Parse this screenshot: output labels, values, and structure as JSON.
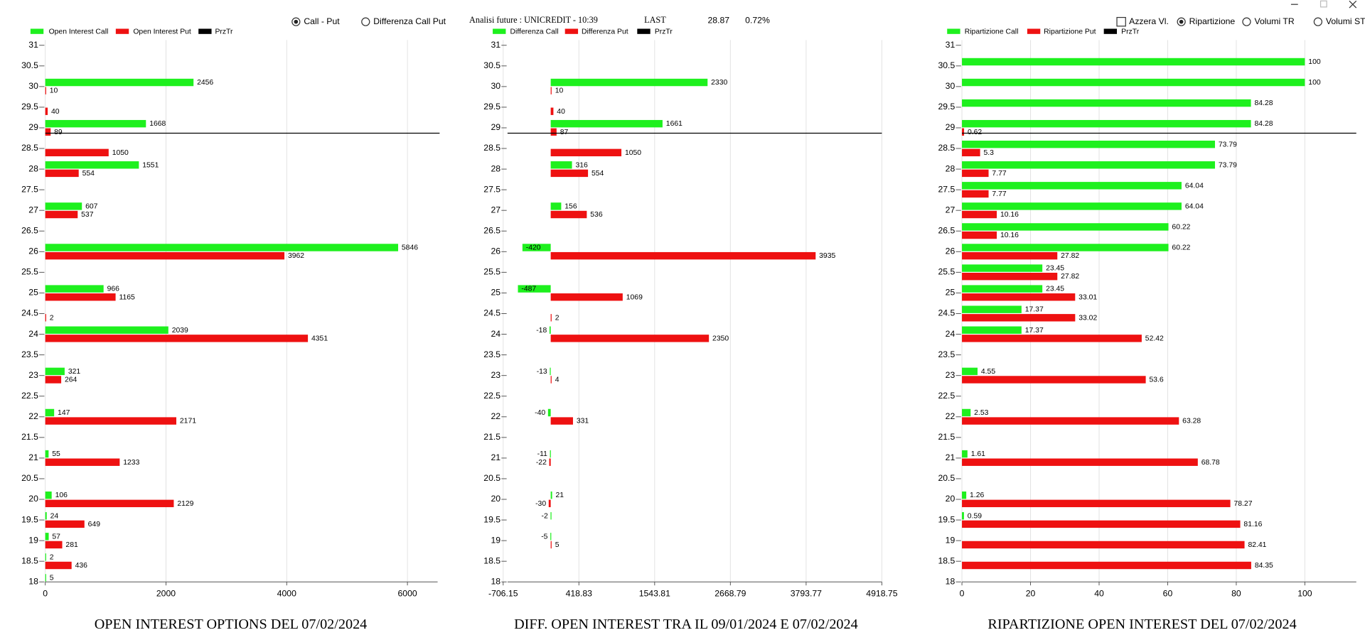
{
  "header": {
    "modes": [
      {
        "label": "Call - Put",
        "checked": true
      },
      {
        "label": "Differenza Call Put",
        "checked": false
      }
    ],
    "analysis": "Analisi future : UNICREDIT - 10:39",
    "last_label": "LAST",
    "last_price": 28.87,
    "change": "0.72%",
    "options": [
      {
        "label": "Azzera Vl.",
        "kind": "checkbox",
        "checked": false
      },
      {
        "label": "Ripartizione",
        "kind": "radio",
        "checked": true
      },
      {
        "label": "Volumi TR",
        "kind": "radio",
        "checked": false
      },
      {
        "label": "Volumi ST",
        "kind": "radio",
        "checked": false
      }
    ]
  },
  "chart_data": [
    {
      "type": "bar",
      "orientation": "horizontal",
      "title": "OPEN INTEREST OPTIONS DEL 07/02/2024",
      "categories": [
        31,
        30.5,
        30,
        29.5,
        29,
        28.5,
        28,
        27.5,
        27,
        26.5,
        26,
        25.5,
        25,
        24.5,
        24,
        23.5,
        23,
        22.5,
        22,
        21.5,
        21,
        20.5,
        20,
        19.5,
        19,
        18.5,
        18
      ],
      "ylim": [
        18,
        31
      ],
      "xlim": [
        0,
        6500
      ],
      "xticks": [
        0,
        2000,
        4000,
        6000
      ],
      "grid": true,
      "price_line": {
        "name": "PrzTr",
        "color": "#000000"
      },
      "series": [
        {
          "name": "Open Interest Call",
          "color": "#1ef01e",
          "values": [
            null,
            null,
            2456,
            null,
            1668,
            null,
            1551,
            null,
            607,
            null,
            5846,
            null,
            966,
            null,
            2039,
            null,
            321,
            null,
            147,
            null,
            55,
            null,
            106,
            24,
            57,
            2,
            5
          ]
        },
        {
          "name": "Open Interest Put",
          "color": "#ee1111",
          "values": [
            null,
            null,
            10,
            40,
            89,
            1050,
            554,
            null,
            537,
            null,
            3962,
            null,
            1165,
            2,
            4351,
            null,
            264,
            null,
            2171,
            null,
            1233,
            null,
            2129,
            649,
            281,
            436,
            null
          ]
        }
      ]
    },
    {
      "type": "bar",
      "orientation": "horizontal",
      "title": "DIFF. OPEN INTEREST TRA IL 09/01/2024 E 07/02/2024",
      "categories": [
        31,
        30.5,
        30,
        29.5,
        29,
        28.5,
        28,
        27.5,
        27,
        26.5,
        26,
        25.5,
        25,
        24.5,
        24,
        23.5,
        23,
        22.5,
        22,
        21.5,
        21,
        20.5,
        20,
        19.5,
        19,
        18.5,
        18
      ],
      "ylim": [
        18,
        31
      ],
      "xlim": [
        -706.15,
        4918.75
      ],
      "xticks": [
        -706.15,
        418.83,
        1543.81,
        2668.79,
        3793.77,
        4918.75
      ],
      "grid": true,
      "price_line": {
        "name": "PrzTr",
        "color": "#000000"
      },
      "series": [
        {
          "name": "Differenza Call",
          "color": "#1ef01e",
          "values": [
            null,
            null,
            2330,
            null,
            1661,
            null,
            316,
            null,
            156,
            null,
            -420,
            null,
            -487,
            null,
            -18,
            null,
            -13,
            null,
            -40,
            null,
            -11,
            null,
            21,
            -2,
            -5,
            null,
            null
          ]
        },
        {
          "name": "Differenza Put",
          "color": "#ee1111",
          "values": [
            null,
            null,
            10,
            40,
            87,
            1050,
            554,
            null,
            536,
            null,
            3935,
            null,
            1069,
            2,
            2350,
            null,
            4,
            null,
            331,
            null,
            -22,
            null,
            -30,
            null,
            5,
            null,
            null
          ]
        }
      ]
    },
    {
      "type": "bar",
      "orientation": "horizontal",
      "title": "RIPARTIZIONE OPEN INTEREST DEL 07/02/2024",
      "categories": [
        31,
        30.5,
        30,
        29.5,
        29,
        28.5,
        28,
        27.5,
        27,
        26.5,
        26,
        25.5,
        25,
        24.5,
        24,
        23.5,
        23,
        22.5,
        22,
        21.5,
        21,
        20.5,
        20,
        19.5,
        19,
        18.5,
        18
      ],
      "ylim": [
        18,
        31
      ],
      "xlim": [
        0,
        115
      ],
      "xticks": [
        0,
        20,
        40,
        60,
        80,
        100
      ],
      "grid": true,
      "price_line": {
        "name": "PrzTr",
        "color": "#000000"
      },
      "series": [
        {
          "name": "Ripartizione Call",
          "color": "#1ef01e",
          "values": [
            null,
            100,
            100,
            84.28,
            84.28,
            73.79,
            73.79,
            64.04,
            64.04,
            60.22,
            60.22,
            23.45,
            23.45,
            17.37,
            17.37,
            null,
            4.55,
            null,
            2.53,
            null,
            1.61,
            null,
            1.26,
            0.59,
            null,
            null,
            null
          ]
        },
        {
          "name": "Ripartizione Put",
          "color": "#ee1111",
          "values": [
            null,
            null,
            null,
            null,
            0.62,
            5.3,
            7.77,
            7.77,
            10.16,
            10.16,
            27.82,
            27.82,
            33.01,
            33.02,
            52.42,
            null,
            53.6,
            null,
            63.28,
            null,
            68.78,
            null,
            78.27,
            81.16,
            82.41,
            84.35,
            null
          ]
        }
      ]
    }
  ]
}
